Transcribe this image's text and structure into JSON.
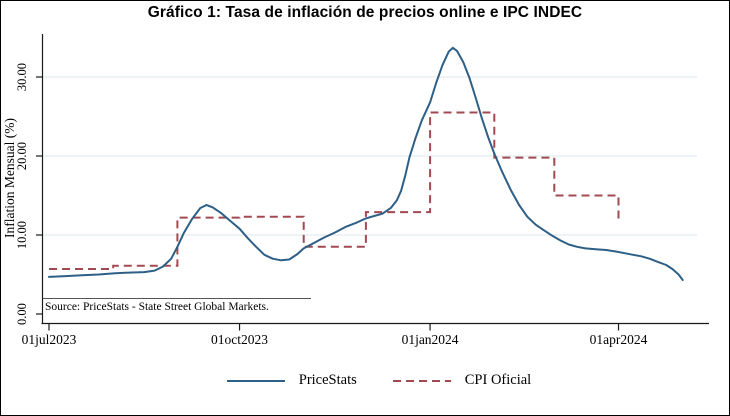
{
  "title": "Gráfico 1: Tasa de inflación de precios online e IPC INDEC",
  "source_note": "Source: PriceStats - State Street Global Markets.",
  "legend": {
    "items": [
      {
        "label": "PriceStats",
        "line": "solid",
        "color": "#2d5f87"
      },
      {
        "label": "CPI Oficial",
        "line": "dashed",
        "color": "#a14a50"
      }
    ]
  },
  "chart_data": {
    "type": "line",
    "title": "Gráfico 1: Tasa de inflación de precios online e IPC INDEC",
    "xlabel": "",
    "ylabel": "Inflation Mensual (%)",
    "ylim": [
      0,
      35
    ],
    "x_start": "2023-07-01",
    "x_end": "2024-05-15",
    "grid": "horizontal",
    "grid_color": "#dde9ee",
    "axis_color": "#1a1a1a",
    "y_ticks": [
      {
        "value": 0,
        "label": "0.00"
      },
      {
        "value": 10,
        "label": "10.00"
      },
      {
        "value": 20,
        "label": "20.00"
      },
      {
        "value": 30,
        "label": "30.00"
      }
    ],
    "x_ticks": [
      {
        "pos": "2023-07-01",
        "label": "01jul2023"
      },
      {
        "pos": "2023-10-01",
        "label": "01oct2023"
      },
      {
        "pos": "2024-01-01",
        "label": "01jan2024"
      },
      {
        "pos": "2024-04-01",
        "label": "01apr2024"
      }
    ],
    "series": [
      {
        "name": "PriceStats",
        "style": "solid",
        "color": "#2d5f87",
        "points": [
          [
            "2023-07-01",
            4.7
          ],
          [
            "2023-07-09",
            4.8
          ],
          [
            "2023-07-17",
            4.9
          ],
          [
            "2023-07-25",
            5.0
          ],
          [
            "2023-08-02",
            5.15
          ],
          [
            "2023-08-10",
            5.25
          ],
          [
            "2023-08-16",
            5.3
          ],
          [
            "2023-08-21",
            5.5
          ],
          [
            "2023-08-25",
            6.0
          ],
          [
            "2023-08-29",
            7.0
          ],
          [
            "2023-09-01",
            8.5
          ],
          [
            "2023-09-04",
            10.2
          ],
          [
            "2023-09-08",
            12.0
          ],
          [
            "2023-09-12",
            13.4
          ],
          [
            "2023-09-15",
            13.8
          ],
          [
            "2023-09-18",
            13.5
          ],
          [
            "2023-09-22",
            12.8
          ],
          [
            "2023-09-26",
            11.9
          ],
          [
            "2023-10-01",
            10.8
          ],
          [
            "2023-10-05",
            9.6
          ],
          [
            "2023-10-09",
            8.5
          ],
          [
            "2023-10-13",
            7.5
          ],
          [
            "2023-10-17",
            7.0
          ],
          [
            "2023-10-21",
            6.8
          ],
          [
            "2023-10-25",
            6.9
          ],
          [
            "2023-10-29",
            7.6
          ],
          [
            "2023-11-01",
            8.3
          ],
          [
            "2023-11-06",
            9.0
          ],
          [
            "2023-11-11",
            9.7
          ],
          [
            "2023-11-16",
            10.3
          ],
          [
            "2023-11-21",
            11.0
          ],
          [
            "2023-11-26",
            11.5
          ],
          [
            "2023-12-01",
            12.1
          ],
          [
            "2023-12-05",
            12.4
          ],
          [
            "2023-12-09",
            12.7
          ],
          [
            "2023-12-13",
            13.4
          ],
          [
            "2023-12-16",
            14.4
          ],
          [
            "2023-12-18",
            15.6
          ],
          [
            "2023-12-20",
            17.5
          ],
          [
            "2023-12-22",
            19.8
          ],
          [
            "2023-12-25",
            22.3
          ],
          [
            "2023-12-28",
            24.5
          ],
          [
            "2024-01-01",
            26.8
          ],
          [
            "2024-01-04",
            29.3
          ],
          [
            "2024-01-07",
            31.5
          ],
          [
            "2024-01-10",
            33.2
          ],
          [
            "2024-01-12",
            33.7
          ],
          [
            "2024-01-14",
            33.3
          ],
          [
            "2024-01-17",
            31.9
          ],
          [
            "2024-01-20",
            29.9
          ],
          [
            "2024-01-23",
            27.4
          ],
          [
            "2024-01-26",
            24.8
          ],
          [
            "2024-01-29",
            22.4
          ],
          [
            "2024-02-01",
            20.3
          ],
          [
            "2024-02-05",
            17.9
          ],
          [
            "2024-02-09",
            15.7
          ],
          [
            "2024-02-13",
            13.8
          ],
          [
            "2024-02-17",
            12.3
          ],
          [
            "2024-02-21",
            11.3
          ],
          [
            "2024-02-25",
            10.6
          ],
          [
            "2024-02-29",
            9.9
          ],
          [
            "2024-03-04",
            9.3
          ],
          [
            "2024-03-08",
            8.8
          ],
          [
            "2024-03-12",
            8.5
          ],
          [
            "2024-03-16",
            8.3
          ],
          [
            "2024-03-21",
            8.2
          ],
          [
            "2024-03-26",
            8.1
          ],
          [
            "2024-03-31",
            7.9
          ],
          [
            "2024-04-04",
            7.7
          ],
          [
            "2024-04-08",
            7.5
          ],
          [
            "2024-04-12",
            7.3
          ],
          [
            "2024-04-16",
            7.0
          ],
          [
            "2024-04-20",
            6.6
          ],
          [
            "2024-04-24",
            6.2
          ],
          [
            "2024-04-27",
            5.7
          ],
          [
            "2024-04-30",
            5.0
          ],
          [
            "2024-05-02",
            4.3
          ]
        ]
      },
      {
        "name": "CPI Oficial",
        "style": "dashed",
        "color": "#a14a50",
        "steps": [
          {
            "month": "jul2023",
            "from": "2023-07-01",
            "to": "2023-08-01",
            "value": 5.7
          },
          {
            "month": "aug2023",
            "from": "2023-08-01",
            "to": "2023-09-01",
            "value": 6.1
          },
          {
            "month": "sep2023",
            "from": "2023-09-01",
            "to": "2023-10-01",
            "value": 12.2
          },
          {
            "month": "oct2023",
            "from": "2023-10-01",
            "to": "2023-11-01",
            "value": 12.3
          },
          {
            "month": "nov2023",
            "from": "2023-11-01",
            "to": "2023-12-01",
            "value": 8.5
          },
          {
            "month": "dec2023",
            "from": "2023-12-01",
            "to": "2024-01-01",
            "value": 12.9
          },
          {
            "month": "jan2024",
            "from": "2024-01-01",
            "to": "2024-02-01",
            "value": 25.5
          },
          {
            "month": "feb2024",
            "from": "2024-02-01",
            "to": "2024-03-01",
            "value": 19.8
          },
          {
            "month": "mar2024",
            "from": "2024-03-01",
            "to": "2024-04-01",
            "value": 15.0
          }
        ],
        "end_drop_value": 11.7
      }
    ]
  }
}
